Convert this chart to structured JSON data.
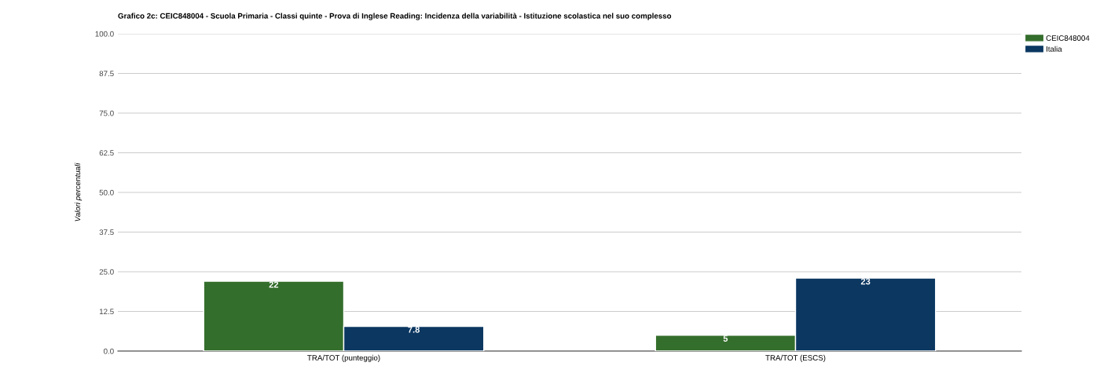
{
  "chart_data": {
    "type": "bar",
    "title": "Grafico 2c: CEIC848004 - Scuola Primaria - Classi quinte - Prova di Inglese Reading: Incidenza della variabilità - Istituzione scolastica nel suo complesso",
    "ylabel": "Valori percentuali",
    "categories": [
      "TRA/TOT (punteggio)",
      "TRA/TOT (ESCS)"
    ],
    "series": [
      {
        "name": "CEIC848004",
        "color": "#346e2c",
        "values": [
          22,
          5
        ]
      },
      {
        "name": "Italia",
        "color": "#0b3761",
        "values": [
          7.8,
          23
        ]
      }
    ],
    "ylim": [
      0,
      100
    ],
    "yticks": [
      {
        "value": 0,
        "label": "0.0"
      },
      {
        "value": 12.5,
        "label": "12.5"
      },
      {
        "value": 25,
        "label": "25.0"
      },
      {
        "value": 37.5,
        "label": "37.5"
      },
      {
        "value": 50,
        "label": "50.0"
      },
      {
        "value": 62.5,
        "label": "62.5"
      },
      {
        "value": 75,
        "label": "75.0"
      },
      {
        "value": 87.5,
        "label": "87.5"
      },
      {
        "value": 100,
        "label": "100.0"
      }
    ],
    "grid": "y",
    "legend": "top right",
    "data_labels": true
  }
}
